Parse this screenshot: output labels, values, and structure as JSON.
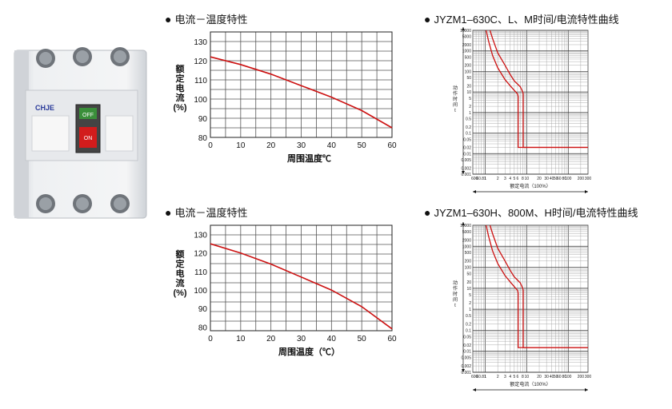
{
  "product": {
    "brand": "CHJE",
    "switch_off_label": "OFF",
    "switch_on_label": "ON"
  },
  "derating_titles": [
    "电流－温度特性",
    "电流－温度特性"
  ],
  "curve_titles": [
    "JYZM1–630C、L、M时间/电流特性曲线",
    "JYZM1–630H、800M、H时间/电流特性曲线"
  ],
  "chart_data": [
    {
      "type": "line",
      "title": "电流－温度特性",
      "xlabel": "周围温度℃",
      "ylabel": "额定电流(%)",
      "xlim": [
        0,
        60
      ],
      "ylim": [
        80,
        135
      ],
      "x_ticks": [
        0,
        10,
        20,
        30,
        40,
        50,
        60
      ],
      "y_ticks": [
        80,
        90,
        100,
        110,
        120,
        130
      ],
      "grid": true,
      "series": [
        {
          "x": [
            0,
            10,
            20,
            30,
            40,
            50,
            60
          ],
          "y": [
            122,
            118,
            113,
            107,
            101,
            94,
            85
          ],
          "color": "#cc1111"
        }
      ]
    },
    {
      "type": "line",
      "title": "电流－温度特性",
      "xlabel": "周围温度（℃）",
      "ylabel": "额定电流(%)",
      "xlim": [
        0,
        60
      ],
      "ylim": [
        78,
        135
      ],
      "x_ticks": [
        0,
        10,
        20,
        30,
        40,
        50,
        60
      ],
      "y_ticks": [
        80,
        90,
        100,
        110,
        120,
        130
      ],
      "grid": true,
      "series": [
        {
          "x": [
            0,
            10,
            20,
            30,
            40,
            50,
            60
          ],
          "y": [
            125,
            120,
            114,
            107,
            100,
            91,
            79
          ],
          "color": "#cc1111"
        }
      ]
    },
    {
      "type": "line",
      "title": "JYZM1–630C、L、M时间/电流特性曲线",
      "xlabel": "额定电流（100%）",
      "ylabel": "动作时间 t",
      "x_scale": "log",
      "y_scale": "log",
      "xlim": [
        0.5,
        300
      ],
      "ylim": [
        0.001,
        10000
      ],
      "x_tick_labels": [
        "600",
        "60.81",
        "1",
        "2",
        "3",
        "4",
        "5",
        "6",
        "8",
        "10",
        "20",
        "30",
        "40",
        "50",
        "60",
        "80",
        "100",
        "200",
        "300"
      ],
      "y_tick_labels": [
        "10000",
        "5000",
        "2000",
        "1000",
        "500",
        "200",
        "100",
        "50",
        "20",
        "10",
        "5",
        "2",
        "1",
        "0.5",
        "0.2",
        "0.1",
        "0.05",
        "0.02",
        "0.01",
        "0.005",
        "0.002",
        "0.001"
      ],
      "grid": true,
      "series": [
        {
          "x": [
            1.05,
            1.2,
            1.5,
            2,
            3,
            4,
            5,
            6,
            6.2,
            6.2,
            300
          ],
          "y": [
            10000,
            3000,
            600,
            150,
            40,
            20,
            12,
            8,
            6,
            0.02,
            0.02
          ],
          "color": "#cc1111"
        },
        {
          "x": [
            1.3,
            1.5,
            2,
            3,
            4,
            5,
            7,
            8,
            8.2,
            8.2,
            300
          ],
          "y": [
            10000,
            4000,
            800,
            200,
            70,
            35,
            18,
            10,
            8,
            0.02,
            0.02
          ],
          "color": "#cc1111"
        }
      ]
    },
    {
      "type": "line",
      "title": "JYZM1–630H、800M、H时间/电流特性曲线",
      "xlabel": "额定电流（100%）",
      "ylabel": "动作时间 t",
      "x_scale": "log",
      "y_scale": "log",
      "xlim": [
        0.5,
        300
      ],
      "ylim": [
        0.001,
        10000
      ],
      "x_tick_labels": [
        "600",
        "60.81",
        "1",
        "2",
        "3",
        "4",
        "5",
        "6",
        "8",
        "10",
        "20",
        "30",
        "40",
        "50",
        "60",
        "80",
        "100",
        "200",
        "300"
      ],
      "y_tick_labels": [
        "10000",
        "5000",
        "2000",
        "1000",
        "500",
        "200",
        "100",
        "50",
        "20",
        "10",
        "5",
        "2",
        "1",
        "0.5",
        "0.2",
        "0.1",
        "0.05",
        "0.02",
        "0.01",
        "0.005",
        "0.002",
        "0.001"
      ],
      "grid": true,
      "series": [
        {
          "x": [
            1.05,
            1.2,
            1.5,
            2,
            3,
            4,
            5,
            6,
            6.2,
            6.2,
            300
          ],
          "y": [
            10000,
            3000,
            600,
            150,
            40,
            20,
            12,
            8,
            6,
            0.015,
            0.015
          ],
          "color": "#cc1111"
        },
        {
          "x": [
            1.3,
            1.5,
            2,
            3,
            4,
            5,
            7,
            8,
            8.2,
            8.2,
            300
          ],
          "y": [
            10000,
            4000,
            800,
            200,
            70,
            35,
            18,
            10,
            8,
            0.015,
            0.015
          ],
          "color": "#cc1111"
        }
      ]
    }
  ]
}
